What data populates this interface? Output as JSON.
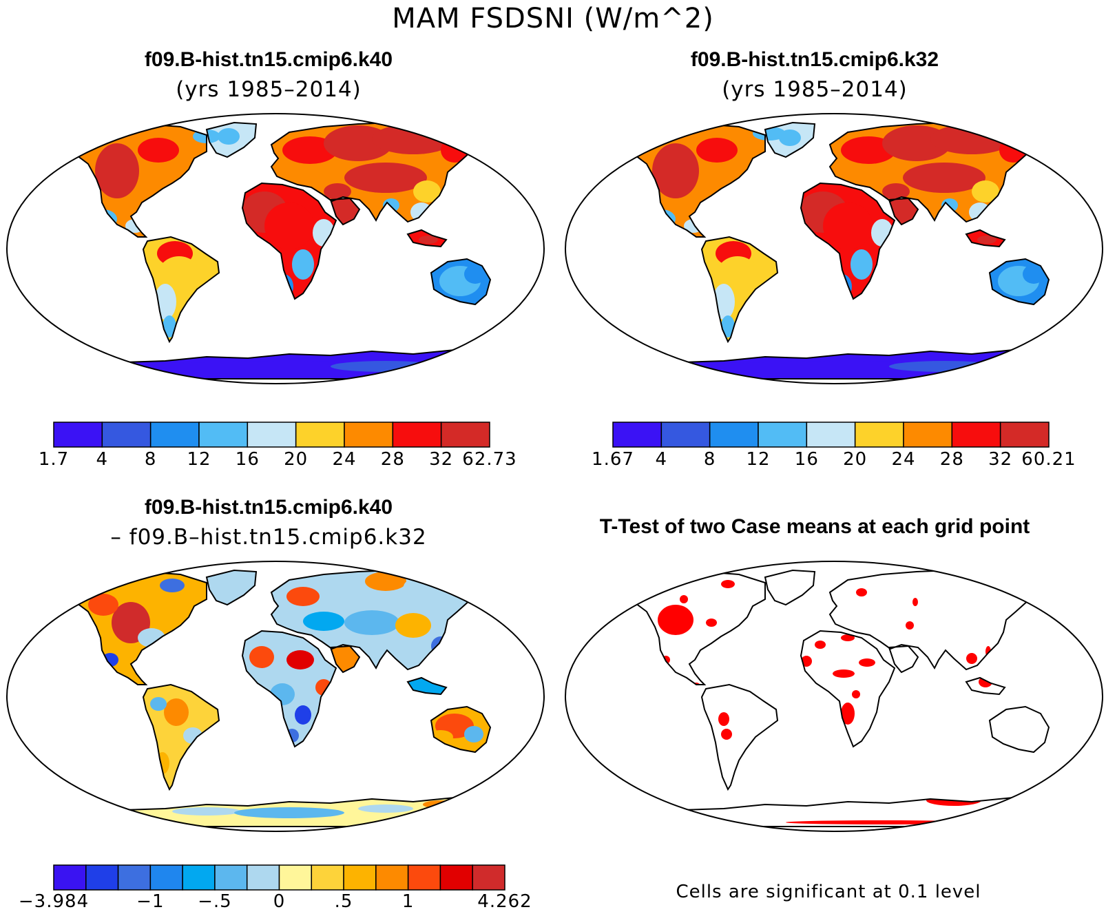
{
  "page_title": "MAM FSDSNI (W/m^2)",
  "panels": [
    {
      "title": "f09.B-hist.tn15.cmip6.k40",
      "subtitle": "(yrs 1985–2014)",
      "colorbar": {
        "colors": [
          "#3b12f5",
          "#3558e0",
          "#1f8ef0",
          "#52bcf5",
          "#c6e6f6",
          "#fdd22a",
          "#fd8a00",
          "#f70d0d",
          "#d42a27"
        ],
        "labels": [
          "1.7",
          "4",
          "8",
          "12",
          "16",
          "20",
          "24",
          "28",
          "32",
          "62.73"
        ]
      }
    },
    {
      "title": "f09.B-hist.tn15.cmip6.k32",
      "subtitle": "(yrs 1985–2014)",
      "colorbar": {
        "colors": [
          "#3b12f5",
          "#3558e0",
          "#1f8ef0",
          "#52bcf5",
          "#c6e6f6",
          "#fdd22a",
          "#fd8a00",
          "#f70d0d",
          "#d42a27"
        ],
        "labels": [
          "1.67",
          "4",
          "8",
          "12",
          "16",
          "20",
          "24",
          "28",
          "32",
          "60.21"
        ]
      }
    },
    {
      "title": "f09.B-hist.tn15.cmip6.k40",
      "subtitle": "– f09.B–hist.tn15.cmip6.k32",
      "colorbar": {
        "colors": [
          "#3a13f2",
          "#1f3fe8",
          "#3d6fe0",
          "#1f86ee",
          "#02a8f0",
          "#5cb7ee",
          "#aed8ef",
          "#fff69a",
          "#fdd33a",
          "#fdb300",
          "#fd8a00",
          "#fc4a0d",
          "#e10000",
          "#d02b2b"
        ],
        "labels": [
          "−3.984",
          "−1",
          "−.5",
          "0",
          ".5",
          "1",
          "4.262"
        ]
      }
    },
    {
      "title": "T-Test of two Case means at each grid point",
      "footer": "Cells are significant at 0.1 level"
    }
  ],
  "colors": {
    "land_outline": "#000000",
    "significant": "#ff0000"
  }
}
